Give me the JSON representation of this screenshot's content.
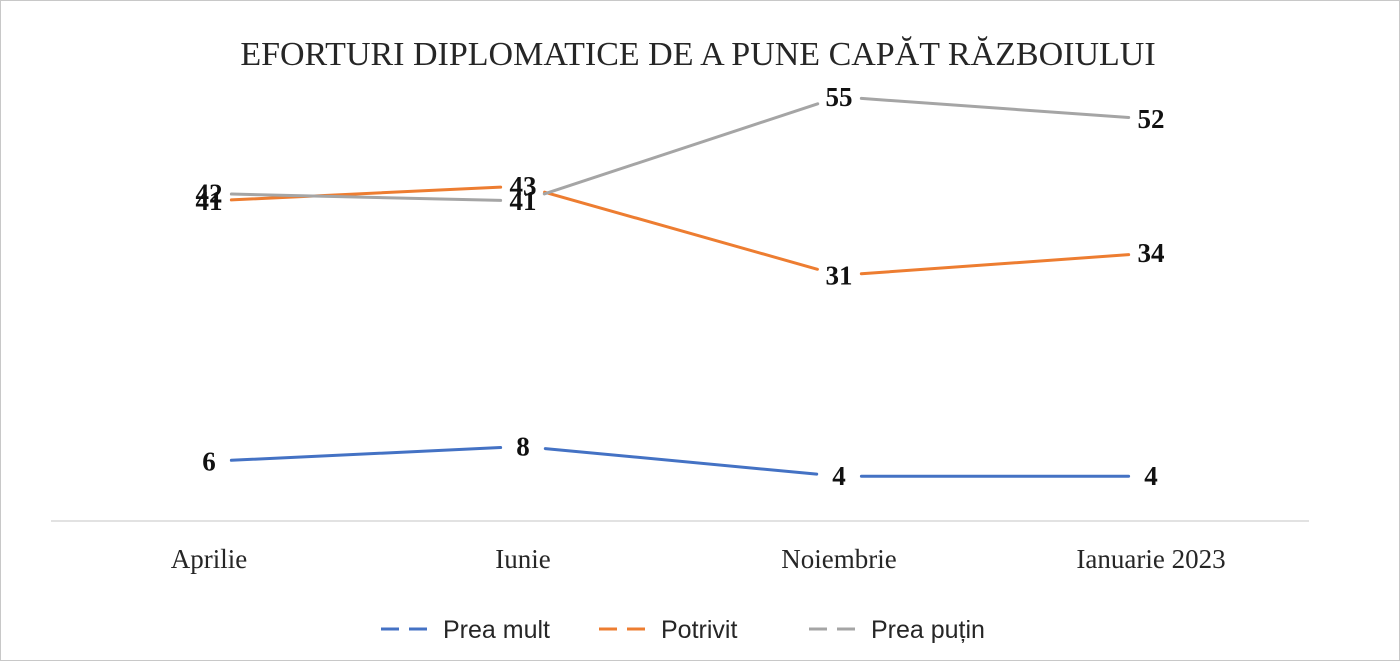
{
  "chart_data": {
    "type": "line",
    "title": "EFORTURI DIPLOMATICE DE A PUNE CAPĂT RĂZBOIULUI",
    "categories": [
      "Aprilie",
      "Iunie",
      "Noiembrie",
      "Ianuarie 2023"
    ],
    "series": [
      {
        "name": "Prea mult",
        "color": "#4472C4",
        "values": [
          6,
          8,
          4,
          4
        ]
      },
      {
        "name": "Potrivit",
        "color": "#ED7D31",
        "values": [
          41,
          43,
          31,
          34
        ]
      },
      {
        "name": "Prea puțin",
        "color": "#A5A5A5",
        "values": [
          42,
          41,
          55,
          52
        ]
      }
    ],
    "ylim": [
      0,
      60
    ],
    "grid": false,
    "legend": "bottom",
    "data_labels": true
  }
}
